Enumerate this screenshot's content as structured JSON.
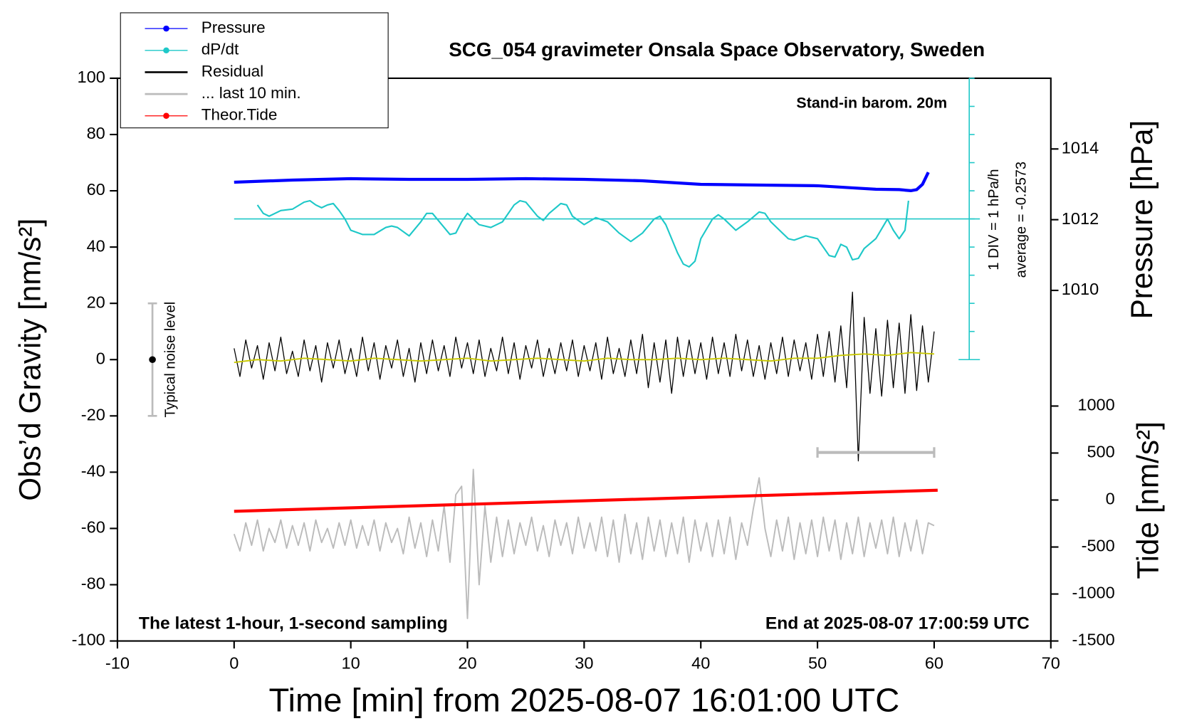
{
  "chart_data": {
    "type": "line",
    "title": "SCG_054 gravimeter Onsala Space Observatory, Sweden",
    "xlabel": "Time [min] from 2025-08-07 16:01:00 UTC",
    "ylabel": "Obs’d Gravity [nm/s²]",
    "y2label": "Pressure [hPa]",
    "y3label": "Tide [nm/s²]",
    "xlim": [
      -10,
      70
    ],
    "xticks": [
      -10,
      0,
      10,
      20,
      30,
      40,
      50,
      60,
      70
    ],
    "ylim": [
      -100,
      100
    ],
    "yticks": [
      -100,
      -80,
      -60,
      -40,
      -20,
      0,
      20,
      40,
      60,
      80,
      100
    ],
    "y2lim": [
      1000.085,
      1016
    ],
    "y2ticks": [
      1010,
      1012,
      1014
    ],
    "y3lim": [
      -1500,
      4488
    ],
    "y3ticks": [
      -1500,
      -1000,
      -500,
      0,
      500,
      1000
    ],
    "dpdt_lim": [
      -5.2573,
      4.7427
    ],
    "dpdt_ticks": [
      -5.2573,
      -4.2573,
      -3.2573,
      -2.2573,
      -1.2573,
      -0.2573,
      0.7427,
      1.7427,
      2.7427,
      3.7427,
      4.7427
    ],
    "dpdt_average": -0.2573,
    "average_label": "average = -0.2573",
    "div_label": "1 DIV = 1 hPa/h",
    "barometer_note": "Stand-in barom. 20m",
    "footer_left": "The latest 1-hour, 1-second sampling",
    "footer_right": "End at 2025-08-07 17:00:59 UTC",
    "noise_level": {
      "label": "Typical noise level",
      "x": -7,
      "center": 0,
      "error": 20
    },
    "x": [
      0,
      0.5,
      1,
      1.5,
      2,
      2.5,
      3,
      3.5,
      4,
      4.5,
      5,
      5.5,
      6,
      6.5,
      7,
      7.5,
      8,
      8.5,
      9,
      9.5,
      10,
      10.5,
      11,
      11.5,
      12,
      12.5,
      13,
      13.5,
      14,
      14.5,
      15,
      15.5,
      16,
      16.5,
      17,
      17.5,
      18,
      18.5,
      19,
      19.5,
      20,
      20.5,
      21,
      21.5,
      22,
      22.5,
      23,
      23.5,
      24,
      24.5,
      25,
      25.5,
      26,
      26.5,
      27,
      27.5,
      28,
      28.5,
      29,
      29.5,
      30,
      30.5,
      31,
      31.5,
      32,
      32.5,
      33,
      33.5,
      34,
      34.5,
      35,
      35.5,
      36,
      36.5,
      37,
      37.5,
      38,
      38.5,
      39,
      39.5,
      40,
      40.5,
      41,
      41.5,
      42,
      42.5,
      43,
      43.5,
      44,
      44.5,
      45,
      45.5,
      46,
      46.5,
      47,
      47.5,
      48,
      48.5,
      49,
      49.5,
      50,
      50.5,
      51,
      51.5,
      52,
      52.5,
      53,
      53.5,
      54,
      54.5,
      55,
      55.5,
      56,
      56.5,
      57,
      57.5,
      58,
      58.5,
      59,
      59.5,
      60
    ],
    "series": [
      {
        "name": "Pressure",
        "color": "#0000ff",
        "axis": "y2",
        "marker": true,
        "width": 4,
        "x": [
          0,
          5,
          10,
          15,
          20,
          25,
          30,
          35,
          40,
          45,
          50,
          53,
          55,
          57,
          58,
          58.5,
          59,
          59.5
        ],
        "values": [
          1013.06,
          1013.12,
          1013.16,
          1013.14,
          1013.14,
          1013.16,
          1013.14,
          1013.1,
          1013.0,
          1012.98,
          1012.96,
          1012.9,
          1012.86,
          1012.85,
          1012.82,
          1012.85,
          1013.0,
          1013.34
        ]
      },
      {
        "name": "dP/dt",
        "color": "#1ec8c8",
        "axis": "dpdt",
        "marker": true,
        "width": 2,
        "x": [
          2,
          2.5,
          3,
          4,
          5,
          6,
          6.5,
          7,
          7.5,
          8,
          8.5,
          9,
          9.5,
          10,
          11,
          12,
          13,
          13.5,
          14,
          15,
          16,
          16.5,
          17,
          18,
          18.5,
          19,
          19.5,
          20,
          21,
          22,
          23,
          24,
          24.5,
          25,
          26,
          26.5,
          27,
          28,
          28.5,
          29,
          30,
          31,
          32,
          33,
          34,
          35,
          36,
          36.5,
          37,
          38,
          38.5,
          39,
          39.5,
          40,
          41,
          41.5,
          42,
          43,
          44,
          45,
          45.5,
          46,
          47,
          47.5,
          48,
          49,
          50,
          51,
          51.5,
          52,
          52.5,
          53,
          53.5,
          54,
          55,
          56,
          56.5,
          57,
          57.5,
          57.8
        ],
        "values": [
          0.24,
          -0.06,
          -0.16,
          0.04,
          0.09,
          0.34,
          0.39,
          0.24,
          0.14,
          0.24,
          0.29,
          0.04,
          -0.26,
          -0.66,
          -0.81,
          -0.81,
          -0.56,
          -0.51,
          -0.56,
          -0.86,
          -0.36,
          -0.06,
          -0.06,
          -0.56,
          -0.81,
          -0.76,
          -0.36,
          -0.06,
          -0.46,
          -0.56,
          -0.36,
          0.24,
          0.39,
          0.34,
          -0.16,
          -0.31,
          -0.06,
          0.29,
          0.24,
          -0.16,
          -0.46,
          -0.21,
          -0.36,
          -0.76,
          -1.06,
          -0.76,
          -0.26,
          -0.16,
          -0.46,
          -1.46,
          -1.86,
          -1.96,
          -1.76,
          -0.96,
          -0.26,
          -0.11,
          -0.26,
          -0.66,
          -0.36,
          -0.01,
          -0.06,
          -0.36,
          -0.76,
          -0.96,
          -1.01,
          -0.86,
          -0.96,
          -1.56,
          -1.61,
          -1.16,
          -1.26,
          -1.71,
          -1.66,
          -1.31,
          -0.96,
          -0.26,
          -0.66,
          -0.96,
          -0.66,
          0.39
        ]
      },
      {
        "name": "Residual",
        "color": "#000000",
        "axis": "y",
        "marker": false,
        "width": 1.2,
        "values": [
          4,
          -6,
          7,
          -3,
          5,
          -7,
          6,
          -4,
          8,
          -5,
          3,
          -6,
          7,
          -4,
          5,
          -8,
          6,
          -3,
          7,
          -5,
          4,
          -6,
          8,
          -4,
          6,
          -7,
          5,
          -3,
          7,
          -6,
          4,
          -8,
          6,
          -5,
          7,
          -4,
          5,
          -6,
          8,
          -3,
          6,
          -5,
          7,
          -6,
          4,
          -4,
          8,
          -5,
          6,
          -7,
          5,
          -3,
          7,
          -6,
          4,
          -5,
          6,
          -4,
          7,
          -6,
          5,
          -4,
          6,
          -7,
          8,
          -5,
          4,
          -6,
          7,
          -5,
          9,
          -10,
          6,
          -8,
          7,
          -12,
          8,
          -6,
          7,
          -5,
          6,
          -7,
          8,
          -5,
          6,
          -6,
          9,
          -4,
          7,
          -6,
          5,
          -7,
          6,
          -5,
          8,
          -6,
          7,
          -4,
          6,
          -7,
          9,
          -6,
          10,
          -8,
          12,
          -10,
          24,
          -36,
          15,
          -12,
          11,
          -13,
          14,
          -10,
          13,
          -12,
          16,
          -11,
          12,
          -8,
          10
        ]
      },
      {
        "name": "... last 10 min.",
        "color": "#bbbbbb",
        "axis": "y",
        "marker": false,
        "width": 1.8,
        "span_x": [
          50,
          60
        ],
        "span_y": -33,
        "values": [
          -62,
          -68,
          -58,
          -66,
          -57,
          -68,
          -60,
          -65,
          -57,
          -67,
          -59,
          -66,
          -58,
          -68,
          -57,
          -65,
          -60,
          -67,
          -58,
          -66,
          -57,
          -67,
          -59,
          -66,
          -57,
          -68,
          -58,
          -65,
          -60,
          -69,
          -56,
          -67,
          -58,
          -70,
          -57,
          -68,
          -52,
          -72,
          -48,
          -45,
          -92,
          -39,
          -80,
          -52,
          -72,
          -56,
          -70,
          -57,
          -69,
          -58,
          -66,
          -56,
          -68,
          -59,
          -70,
          -57,
          -66,
          -58,
          -69,
          -56,
          -67,
          -58,
          -68,
          -56,
          -70,
          -57,
          -72,
          -55,
          -69,
          -58,
          -71,
          -56,
          -68,
          -57,
          -70,
          -58,
          -69,
          -56,
          -72,
          -57,
          -68,
          -58,
          -70,
          -57,
          -69,
          -56,
          -71,
          -58,
          -66,
          -53,
          -42,
          -60,
          -70,
          -57,
          -68,
          -56,
          -71,
          -58,
          -69,
          -57,
          -70,
          -56,
          -68,
          -57,
          -71,
          -58,
          -69,
          -56,
          -70,
          -58,
          -67,
          -57,
          -69,
          -56,
          -70,
          -58,
          -68,
          -57,
          -69,
          -58,
          -59
        ]
      },
      {
        "name": "Theor.Tide",
        "color": "#ff0000",
        "axis": "y3",
        "marker": true,
        "width": 4,
        "x": [
          0,
          60.3
        ],
        "values": [
          -120,
          104
        ]
      },
      {
        "color": "#c8c800",
        "axis": "y",
        "width": 1.8,
        "x": [
          0,
          2,
          4,
          6,
          8,
          10,
          12,
          14,
          16,
          18,
          20,
          22,
          24,
          26,
          28,
          30,
          32,
          34,
          36,
          38,
          40,
          42,
          44,
          46,
          48,
          50,
          52,
          54,
          56,
          58,
          60
        ],
        "values": [
          -1,
          0,
          -0.5,
          0.5,
          0,
          -0.5,
          0.5,
          0,
          -0.5,
          0,
          0.5,
          -0.5,
          0,
          0.5,
          0,
          -0.5,
          0.5,
          0,
          0,
          0.5,
          0,
          0.5,
          0,
          -0.5,
          0.5,
          0.5,
          1.5,
          2,
          1.5,
          2.5,
          2
        ]
      }
    ]
  }
}
